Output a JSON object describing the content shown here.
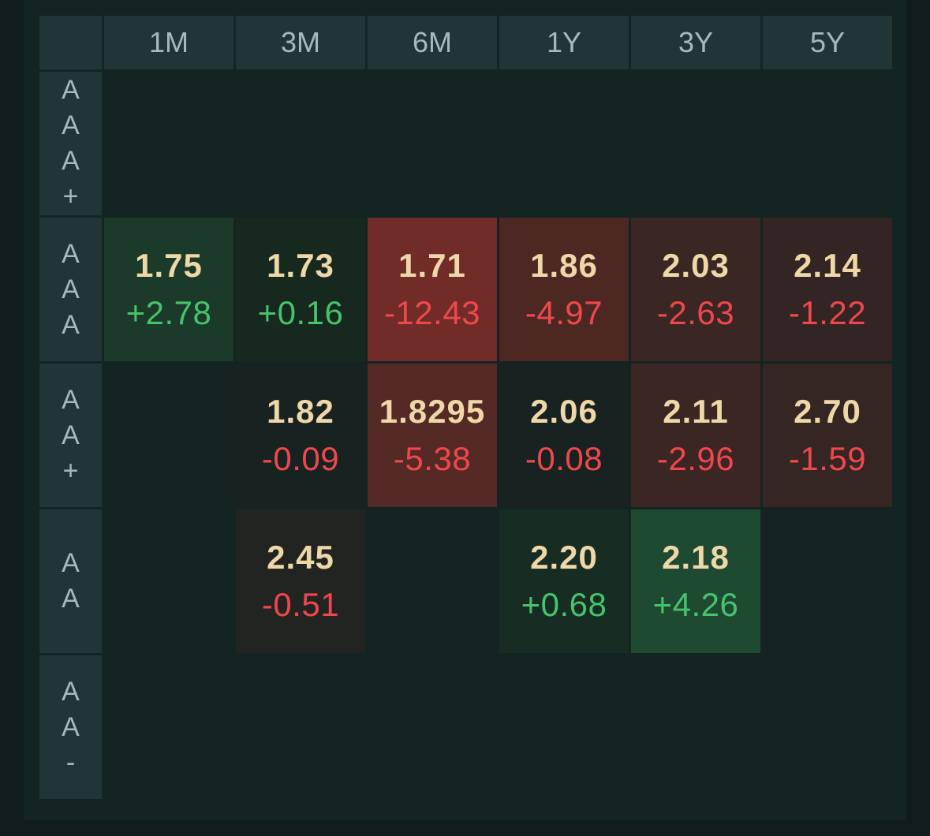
{
  "columns": [
    "1M",
    "3M",
    "6M",
    "1Y",
    "3Y",
    "5Y"
  ],
  "rows": [
    {
      "label": "AAA+",
      "cells": [
        null,
        null,
        null,
        null,
        null,
        null
      ]
    },
    {
      "label": "AAA",
      "cells": [
        {
          "rate": "1.75",
          "change": "+2.78",
          "dir": "up",
          "bg": "#1b3a29"
        },
        {
          "rate": "1.73",
          "change": "+0.16",
          "dir": "up",
          "bg": "#17281f"
        },
        {
          "rate": "1.71",
          "change": "-12.43",
          "dir": "down",
          "bg": "#722c28"
        },
        {
          "rate": "1.86",
          "change": "-4.97",
          "dir": "down",
          "bg": "#4d2823"
        },
        {
          "rate": "2.03",
          "change": "-2.63",
          "dir": "down",
          "bg": "#3a2623"
        },
        {
          "rate": "2.14",
          "change": "-1.22",
          "dir": "down",
          "bg": "#322523"
        }
      ]
    },
    {
      "label": "AA+",
      "cells": [
        null,
        {
          "rate": "1.82",
          "change": "-0.09",
          "dir": "down",
          "bg": "#182221"
        },
        {
          "rate": "1.8295",
          "change": "-5.38",
          "dir": "down",
          "bg": "#552925"
        },
        {
          "rate": "2.06",
          "change": "-0.08",
          "dir": "down",
          "bg": "#182321"
        },
        {
          "rate": "2.11",
          "change": "-2.96",
          "dir": "down",
          "bg": "#3b2624"
        },
        {
          "rate": "2.70",
          "change": "-1.59",
          "dir": "down",
          "bg": "#352523"
        }
      ]
    },
    {
      "label": "AA",
      "cells": [
        null,
        {
          "rate": "2.45",
          "change": "-0.51",
          "dir": "down",
          "bg": "#212421"
        },
        null,
        {
          "rate": "2.20",
          "change": "+0.68",
          "dir": "up",
          "bg": "#172c23"
        },
        {
          "rate": "2.18",
          "change": "+4.26",
          "dir": "up",
          "bg": "#1e4a32"
        },
        null
      ]
    },
    {
      "label": "AA-",
      "cells": [
        null,
        null,
        null,
        null,
        null,
        null
      ]
    }
  ]
}
